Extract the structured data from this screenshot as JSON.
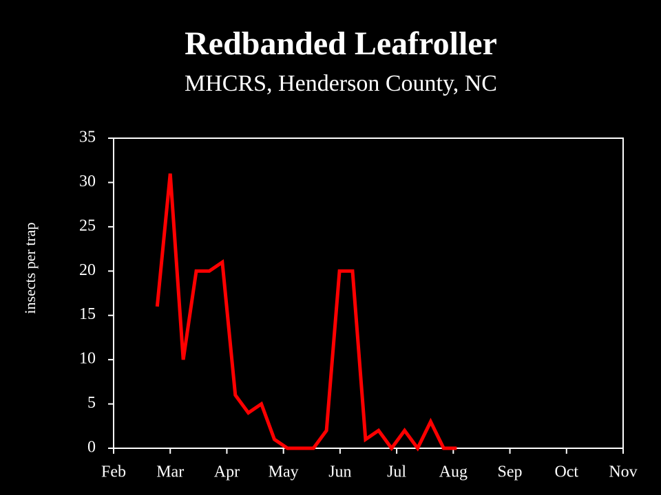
{
  "chart_data": {
    "type": "line",
    "title": "Redbanded Leafroller",
    "subtitle": "MHCRS, Henderson County, NC",
    "y_label": "insects per trap",
    "x": [
      0.77,
      1.0,
      1.23,
      1.46,
      1.69,
      1.92,
      2.15,
      2.38,
      2.61,
      2.84,
      3.07,
      3.3,
      3.53,
      3.76,
      3.99,
      4.22,
      4.45,
      4.68,
      4.91,
      5.14,
      5.37,
      5.6,
      5.83,
      6.06
    ],
    "series": [
      {
        "name": "insects per trap",
        "color": "#ff0000",
        "values": [
          16,
          31,
          10,
          20,
          20,
          21,
          6,
          4,
          5,
          1,
          0,
          0,
          0,
          2,
          20,
          20,
          1,
          2,
          0,
          2,
          0,
          3,
          0,
          0
        ]
      }
    ],
    "xlim": [
      0,
      9
    ],
    "xticks": [
      {
        "value": 0,
        "label": "Feb"
      },
      {
        "value": 1,
        "label": "Mar"
      },
      {
        "value": 2,
        "label": "Apr"
      },
      {
        "value": 3,
        "label": "May"
      },
      {
        "value": 4,
        "label": "Jun"
      },
      {
        "value": 5,
        "label": "Jul"
      },
      {
        "value": 6,
        "label": "Aug"
      },
      {
        "value": 7,
        "label": "Sep"
      },
      {
        "value": 8,
        "label": "Oct"
      },
      {
        "value": 9,
        "label": "Nov"
      }
    ],
    "ylim": [
      0,
      35
    ],
    "yticks": [
      0,
      5,
      10,
      15,
      20,
      25,
      30,
      35
    ],
    "grid": false
  }
}
